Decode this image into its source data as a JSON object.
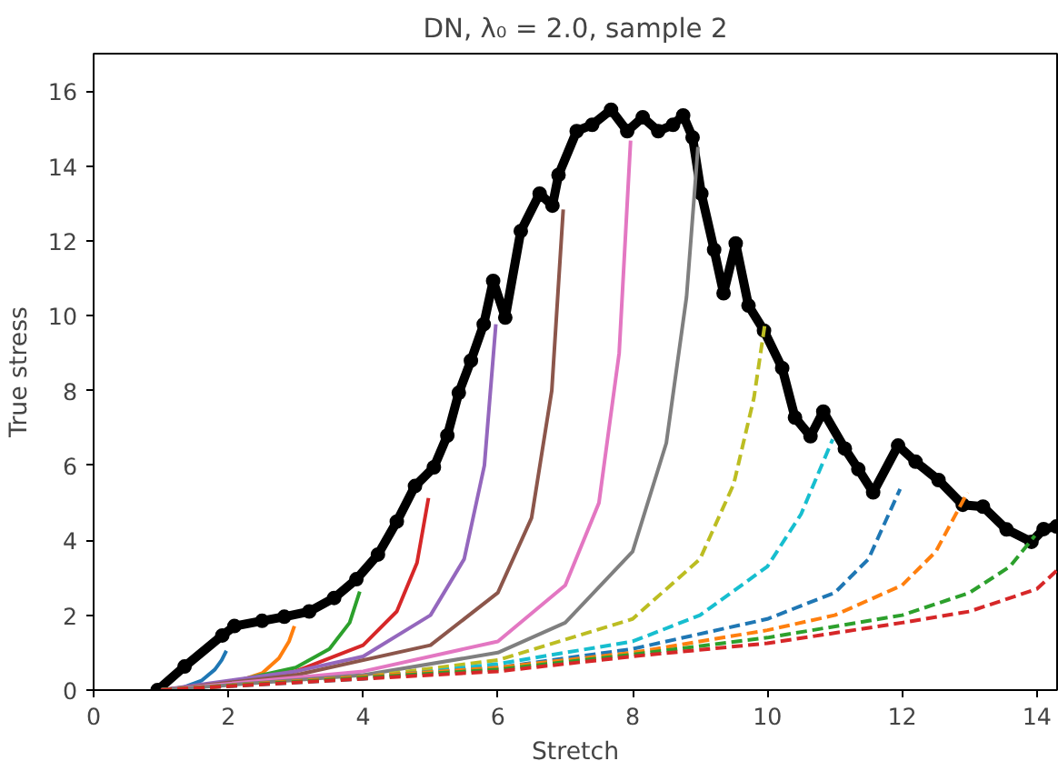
{
  "chart_data": {
    "type": "line",
    "title": "DN, λ₀ = 2.0, sample 2",
    "xlabel": "Stretch",
    "ylabel": "True stress",
    "xlim": [
      0,
      14.3
    ],
    "ylim": [
      0,
      17
    ],
    "xticks": [
      0,
      2,
      4,
      6,
      8,
      10,
      12,
      14
    ],
    "yticks": [
      0,
      2,
      4,
      6,
      8,
      10,
      12,
      14,
      16
    ],
    "grid": false,
    "series": [
      {
        "color": "#000000",
        "marker": "circle",
        "line_style": "solid",
        "x": [
          0.95,
          1.35,
          1.91,
          2.09,
          2.5,
          2.83,
          3.2,
          3.57,
          3.9,
          4.22,
          4.5,
          4.77,
          5.05,
          5.25,
          5.42,
          5.6,
          5.79,
          5.93,
          6.11,
          6.34,
          6.62,
          6.81,
          6.9,
          7.17,
          7.4,
          7.68,
          7.92,
          8.15,
          8.38,
          8.6,
          8.75,
          8.89,
          9.02,
          9.21,
          9.35,
          9.53,
          9.72,
          9.95,
          10.22,
          10.41,
          10.64,
          10.83,
          11.15,
          11.35,
          11.57,
          11.94,
          12.2,
          12.54,
          12.9,
          13.2,
          13.55,
          13.92,
          14.1,
          14.29
        ],
        "values": [
          0,
          0.63,
          1.46,
          1.71,
          1.85,
          1.96,
          2.1,
          2.46,
          2.96,
          3.62,
          4.5,
          5.45,
          5.95,
          6.8,
          7.94,
          8.8,
          9.77,
          10.93,
          9.95,
          12.26,
          13.26,
          12.94,
          13.76,
          14.93,
          15.1,
          15.5,
          14.93,
          15.3,
          14.93,
          15.1,
          15.35,
          14.76,
          13.26,
          11.76,
          10.6,
          11.93,
          10.27,
          9.6,
          8.6,
          7.28,
          6.78,
          7.44,
          6.45,
          5.9,
          5.28,
          6.53,
          6.1,
          5.61,
          4.95,
          4.9,
          4.29,
          3.96,
          4.3,
          4.37
        ]
      },
      {
        "color": "#1f77b4",
        "line_style": "solid",
        "x": [
          1,
          1.3,
          1.6,
          1.8,
          1.9,
          1.97
        ],
        "values": [
          0,
          0.05,
          0.25,
          0.55,
          0.8,
          1.05
        ]
      },
      {
        "color": "#ff7f0e",
        "line_style": "solid",
        "x": [
          1,
          2,
          2.5,
          2.75,
          2.9,
          2.98
        ],
        "values": [
          0,
          0.15,
          0.45,
          0.85,
          1.3,
          1.71
        ]
      },
      {
        "color": "#2ca02c",
        "line_style": "solid",
        "x": [
          1,
          2,
          3,
          3.5,
          3.8,
          3.95
        ],
        "values": [
          0,
          0.2,
          0.6,
          1.1,
          1.8,
          2.63
        ]
      },
      {
        "color": "#d62728",
        "line_style": "solid",
        "x": [
          1,
          2,
          3,
          4,
          4.5,
          4.8,
          4.97
        ],
        "values": [
          0,
          0.2,
          0.5,
          1.2,
          2.1,
          3.4,
          5.13
        ]
      },
      {
        "color": "#9467bd",
        "line_style": "solid",
        "x": [
          1,
          3,
          4,
          5,
          5.5,
          5.8,
          5.97
        ],
        "values": [
          0,
          0.5,
          0.9,
          2.0,
          3.5,
          6.0,
          9.77
        ]
      },
      {
        "color": "#8c564b",
        "line_style": "solid",
        "x": [
          1,
          3,
          5,
          6,
          6.5,
          6.8,
          6.97
        ],
        "values": [
          0,
          0.4,
          1.2,
          2.6,
          4.6,
          8.0,
          12.84
        ]
      },
      {
        "color": "#e377c2",
        "line_style": "solid",
        "x": [
          1,
          4,
          6,
          7,
          7.5,
          7.8,
          7.97
        ],
        "values": [
          0,
          0.5,
          1.3,
          2.8,
          5.0,
          9.0,
          14.68
        ]
      },
      {
        "color": "#7f7f7f",
        "line_style": "solid",
        "x": [
          1,
          4,
          6,
          7,
          8,
          8.5,
          8.8,
          8.97
        ],
        "values": [
          0,
          0.4,
          1.0,
          1.8,
          3.7,
          6.6,
          10.5,
          14.51
        ]
      },
      {
        "color": "#bcbd22",
        "line_style": "dashed",
        "x": [
          1,
          4,
          6,
          8,
          9,
          9.5,
          9.8,
          9.97
        ],
        "values": [
          0,
          0.35,
          0.8,
          1.9,
          3.5,
          5.5,
          7.8,
          9.86
        ]
      },
      {
        "color": "#17becf",
        "line_style": "dashed",
        "x": [
          1,
          4,
          6,
          8,
          9,
          10,
          10.5,
          10.97
        ],
        "values": [
          0,
          0.3,
          0.7,
          1.3,
          2.0,
          3.3,
          4.7,
          6.7
        ]
      },
      {
        "color": "#1f77b4",
        "line_style": "dashed",
        "x": [
          1,
          6,
          8,
          10,
          11,
          11.5,
          11.97
        ],
        "values": [
          0,
          0.6,
          1.1,
          1.9,
          2.6,
          3.5,
          5.37
        ]
      },
      {
        "color": "#ff7f0e",
        "line_style": "dashed",
        "x": [
          1,
          6,
          8,
          10,
          11,
          12,
          12.5,
          12.97
        ],
        "values": [
          0,
          0.6,
          1.0,
          1.6,
          2.0,
          2.8,
          3.7,
          5.28
        ]
      },
      {
        "color": "#2ca02c",
        "line_style": "dashed",
        "x": [
          1,
          6,
          8,
          10,
          12,
          13,
          13.6,
          13.97
        ],
        "values": [
          0,
          0.55,
          0.95,
          1.4,
          2.0,
          2.6,
          3.3,
          4.12
        ]
      },
      {
        "color": "#d62728",
        "line_style": "dashed",
        "x": [
          1,
          6,
          8,
          10,
          12,
          13,
          14,
          14.3
        ],
        "values": [
          0,
          0.5,
          0.9,
          1.25,
          1.8,
          2.1,
          2.7,
          3.2
        ]
      }
    ]
  }
}
